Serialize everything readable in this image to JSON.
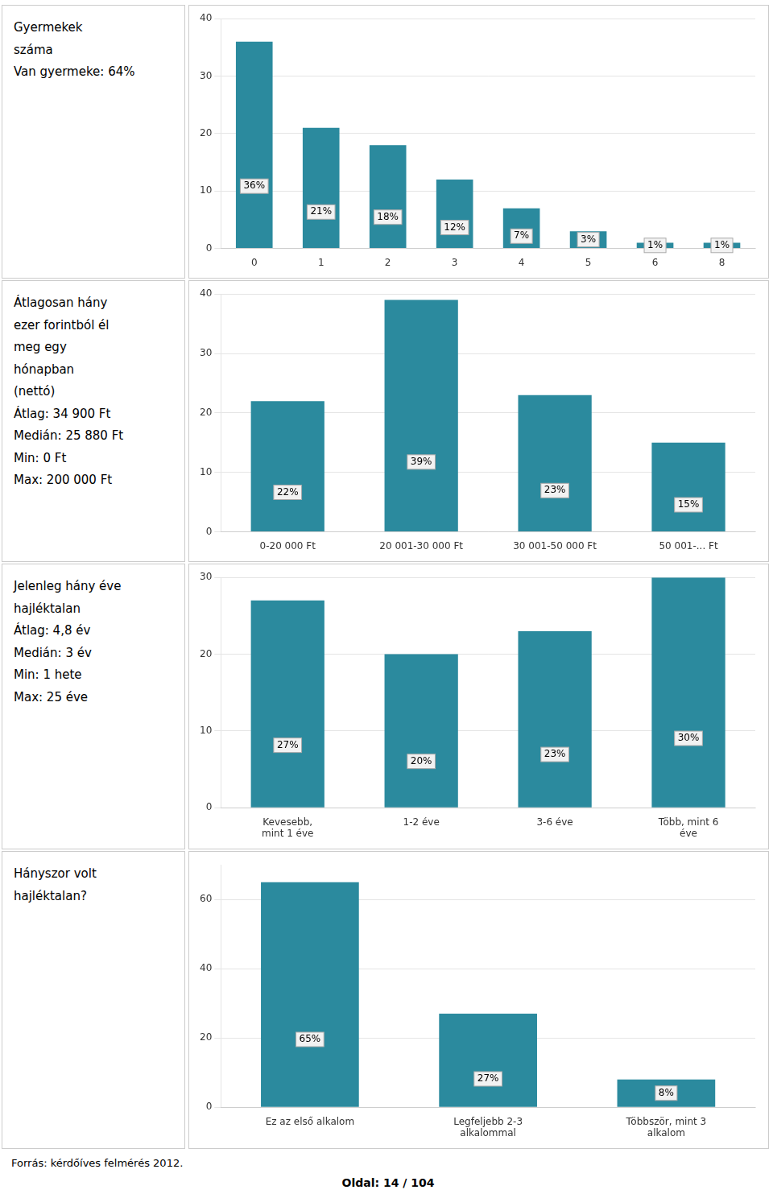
{
  "chart_data": [
    {
      "type": "bar",
      "annotations": [
        "Gyermekek",
        "száma",
        "Van gyermeke: 64%"
      ],
      "categories": [
        "0",
        "1",
        "2",
        "3",
        "4",
        "5",
        "6",
        "8"
      ],
      "values": [
        36,
        21,
        18,
        12,
        7,
        3,
        1,
        1
      ],
      "value_labels": [
        "36%",
        "21%",
        "18%",
        "12%",
        "7%",
        "3%",
        "1%",
        "1%"
      ],
      "data_labels": true,
      "color": "#2b8a9e",
      "ylim": [
        0,
        40
      ],
      "yticks": [
        0,
        10,
        20,
        30,
        40
      ],
      "grid": true
    },
    {
      "type": "bar",
      "annotations": [
        "Átlagosan hány",
        "ezer forintból él",
        "meg egy",
        "hónapban",
        "(nettó)",
        "Átlag: 34 900 Ft",
        "Medián: 25 880 Ft",
        "Min: 0 Ft",
        "Max: 200 000 Ft"
      ],
      "categories": [
        "0-20 000 Ft",
        "20 001-30 000 Ft",
        "30 001-50 000 Ft",
        "50 001-... Ft"
      ],
      "values": [
        22,
        39,
        23,
        15
      ],
      "value_labels": [
        "22%",
        "39%",
        "23%",
        "15%"
      ],
      "data_labels": true,
      "color": "#2b8a9e",
      "ylim": [
        0,
        40
      ],
      "yticks": [
        0,
        10,
        20,
        30,
        40
      ],
      "grid": true
    },
    {
      "type": "bar",
      "annotations": [
        "Jelenleg hány éve",
        "hajléktalan",
        "Átlag: 4,8 év",
        "Medián: 3 év",
        "Min: 1 hete",
        "Max: 25 éve"
      ],
      "categories": [
        "Kevesebb,\nmint 1 éve",
        "1-2 éve",
        "3-6 éve",
        "Több, mint 6\néve"
      ],
      "values": [
        27,
        20,
        23,
        30
      ],
      "value_labels": [
        "27%",
        "20%",
        "23%",
        "30%"
      ],
      "data_labels": true,
      "color": "#2b8a9e",
      "ylim": [
        0,
        30
      ],
      "yticks": [
        0,
        10,
        20,
        30
      ],
      "grid": true
    },
    {
      "type": "bar",
      "annotations": [
        "Hányszor volt",
        "hajléktalan?"
      ],
      "categories": [
        "Ez az első alkalom",
        "Legfeljebb 2-3\nalkalommal",
        "Többször, mint 3\nalkalom"
      ],
      "values": [
        65,
        27,
        8
      ],
      "value_labels": [
        "65%",
        "27%",
        "8%"
      ],
      "data_labels": true,
      "color": "#2b8a9e",
      "ylim": [
        0,
        70
      ],
      "yticks": [
        0,
        20,
        40,
        60
      ],
      "grid": true
    }
  ],
  "annotations": [
    "Forrás: kérdőíves felmérés 2012.",
    "Oldal: 14 / 104"
  ]
}
